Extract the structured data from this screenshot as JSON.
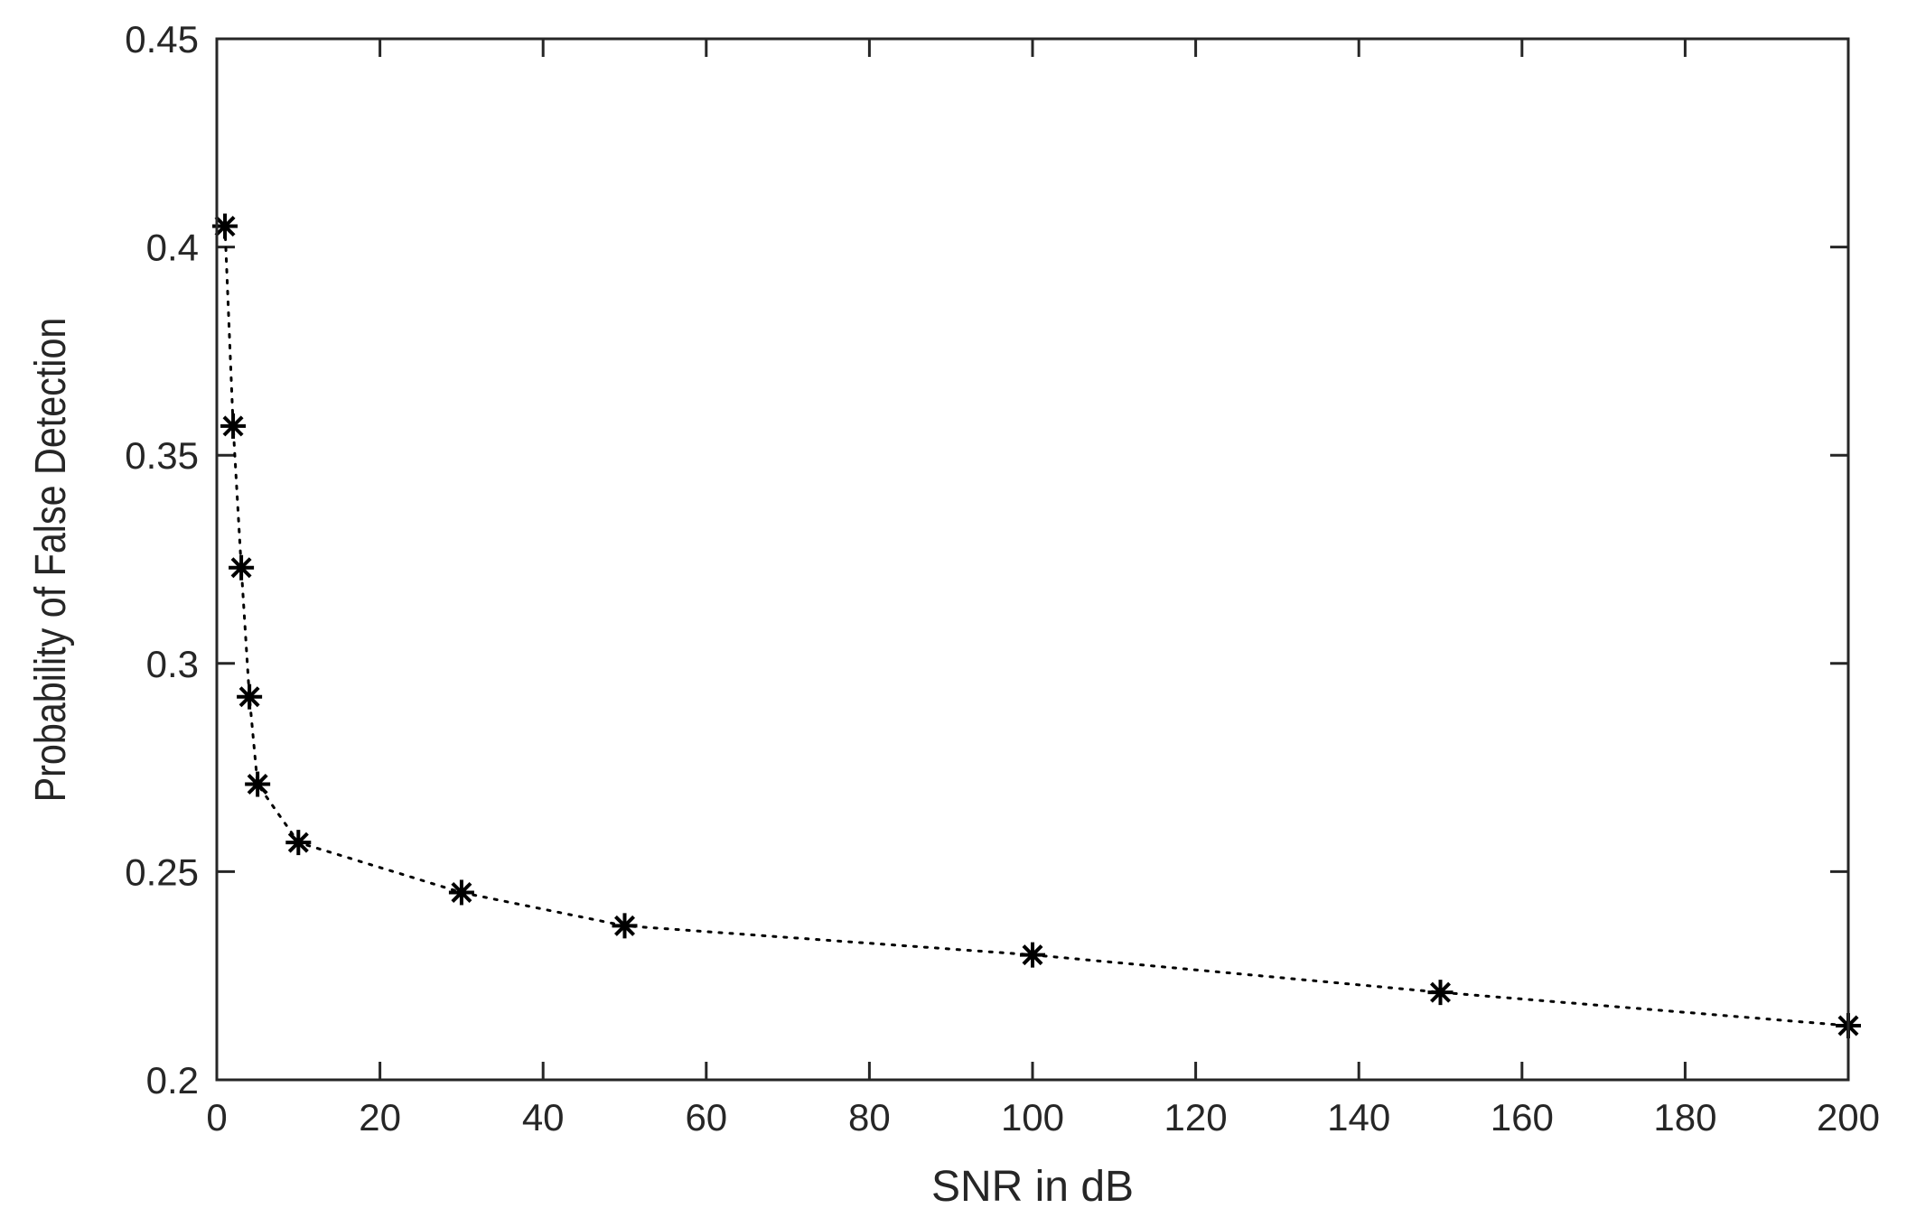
{
  "chart_data": {
    "type": "line",
    "title": "",
    "xlabel": "SNR in dB",
    "ylabel": "Probability of False Detection",
    "xlim": [
      0,
      200
    ],
    "ylim": [
      0.2,
      0.45
    ],
    "xticks": [
      "0",
      "20",
      "40",
      "60",
      "80",
      "100",
      "120",
      "140",
      "160",
      "180",
      "200"
    ],
    "yticks": [
      "0.2",
      "0.25",
      "0.3",
      "0.35",
      "0.4",
      "0.45"
    ],
    "grid": false,
    "legend": "none",
    "series": [
      {
        "marker": "asterisk",
        "line_style": "dotted",
        "color": "#000000",
        "x": [
          1,
          2,
          3,
          4,
          5,
          10,
          30,
          50,
          100,
          150,
          200
        ],
        "y": [
          0.405,
          0.357,
          0.323,
          0.292,
          0.271,
          0.257,
          0.245,
          0.237,
          0.23,
          0.221,
          0.213
        ]
      }
    ]
  }
}
